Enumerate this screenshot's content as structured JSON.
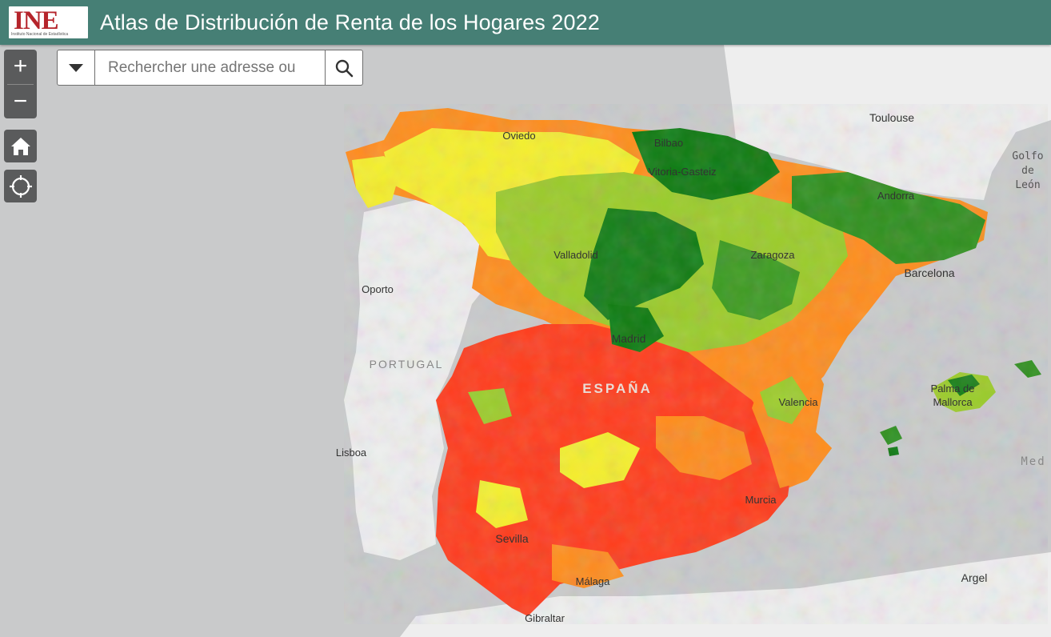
{
  "app": {
    "logo_text": "INE",
    "logo_subtitle": "Instituto Nacional de Estadística",
    "title": "Atlas de Distribución de Renta de los Hogares 2022"
  },
  "controls": {
    "zoom_in": "+",
    "zoom_out": "−",
    "home_icon": "home-icon",
    "locate_icon": "locate-icon"
  },
  "search": {
    "placeholder": "Rechercher une adresse ou",
    "value": ""
  },
  "map": {
    "colors": {
      "water": "#c9cacb",
      "land": "#eeeeee",
      "low": "#ff3c1c",
      "low_mid": "#ff8c1c",
      "mid": "#f5ef2c",
      "mid_high": "#9bcb2a",
      "high": "#0d7a10"
    },
    "labels": {
      "oviedo": "Oviedo",
      "bilbao": "Bilbao",
      "vitoria": "Vitoria-Gasteiz",
      "toulouse": "Toulouse",
      "golfo_1": "Golfo",
      "golfo_2": "de",
      "golfo_3": "León",
      "andorra": "Andorra",
      "valladolid": "Valladolid",
      "zaragoza": "Zaragoza",
      "barcelona": "Barcelona",
      "oporto": "Oporto",
      "madrid": "Madrid",
      "portugal": "PORTUGAL",
      "espana": "ESPAÑA",
      "valencia": "Valencia",
      "palma_1": "Palma de",
      "palma_2": "Mallorca",
      "lisboa": "Lisboa",
      "med": "Med",
      "murcia": "Murcia",
      "sevilla": "Sevilla",
      "malaga": "Málaga",
      "argel": "Argel",
      "gibraltar": "Gibraltar"
    }
  }
}
